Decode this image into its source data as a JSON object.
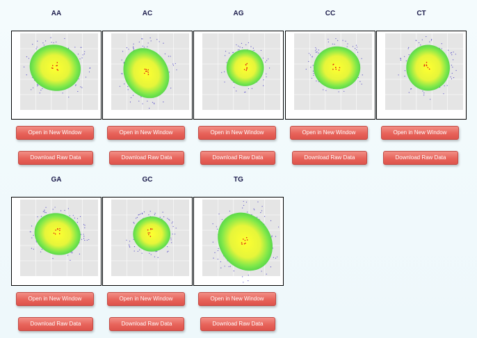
{
  "panels": [
    {
      "title": "AA",
      "open": "Open in New Window",
      "download": "Download Raw Data"
    },
    {
      "title": "AC",
      "open": "Open in New Window",
      "download": "Download Raw Data"
    },
    {
      "title": "AG",
      "open": "Open in New Window",
      "download": "Download Raw Data"
    },
    {
      "title": "CC",
      "open": "Open in New Window",
      "download": "Download Raw Data"
    },
    {
      "title": "CT",
      "open": "Open in New Window",
      "download": "Download Raw Data"
    },
    {
      "title": "GA",
      "open": "Open in New Window",
      "download": "Download Raw Data"
    },
    {
      "title": "GC",
      "open": "Open in New Window",
      "download": "Download Raw Data"
    },
    {
      "title": "TG",
      "open": "Open in New Window",
      "download": "Download Raw Data"
    }
  ]
}
